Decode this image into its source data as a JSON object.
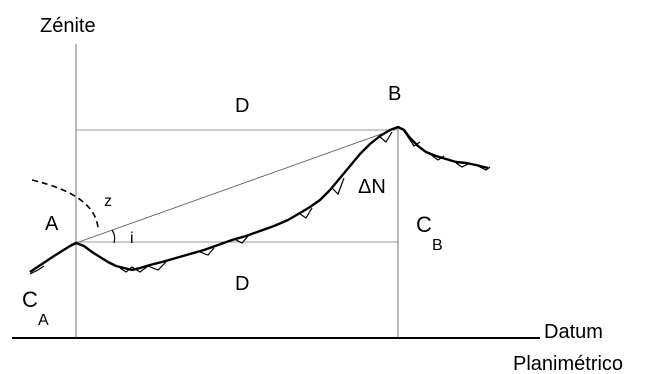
{
  "labels": {
    "zenith": "Zénite",
    "point_a": "A",
    "point_b": "B",
    "horizontal_top": "D",
    "horizontal_bottom": "D",
    "height_diff": "ΔN",
    "zenith_angle": "z",
    "slope_angle": "i",
    "elev_a": "C",
    "elev_a_sub": "A",
    "elev_b": "C",
    "elev_b_sub": "B",
    "datum_line1": "Datum",
    "datum_line2": "Planimétrico"
  }
}
